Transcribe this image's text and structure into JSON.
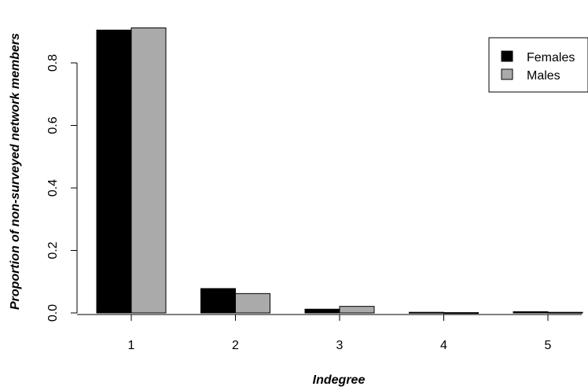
{
  "chart_data": {
    "type": "bar",
    "categories": [
      "1",
      "2",
      "3",
      "4",
      "5"
    ],
    "series": [
      {
        "name": "Females",
        "color": "#000000",
        "values": [
          0.905,
          0.078,
          0.012,
          0.002,
          0.004
        ]
      },
      {
        "name": "Males",
        "color": "#aaaaaa",
        "values": [
          0.912,
          0.062,
          0.021,
          0.001,
          0.002
        ]
      }
    ],
    "xlabel": "Indegree",
    "ylabel": "Proportion of non-surveyed network members",
    "ylim": [
      0,
      0.92
    ],
    "yticks": [
      "0.0",
      "0.2",
      "0.4",
      "0.6",
      "0.8"
    ],
    "legend_position": "top-right",
    "grid": false
  }
}
